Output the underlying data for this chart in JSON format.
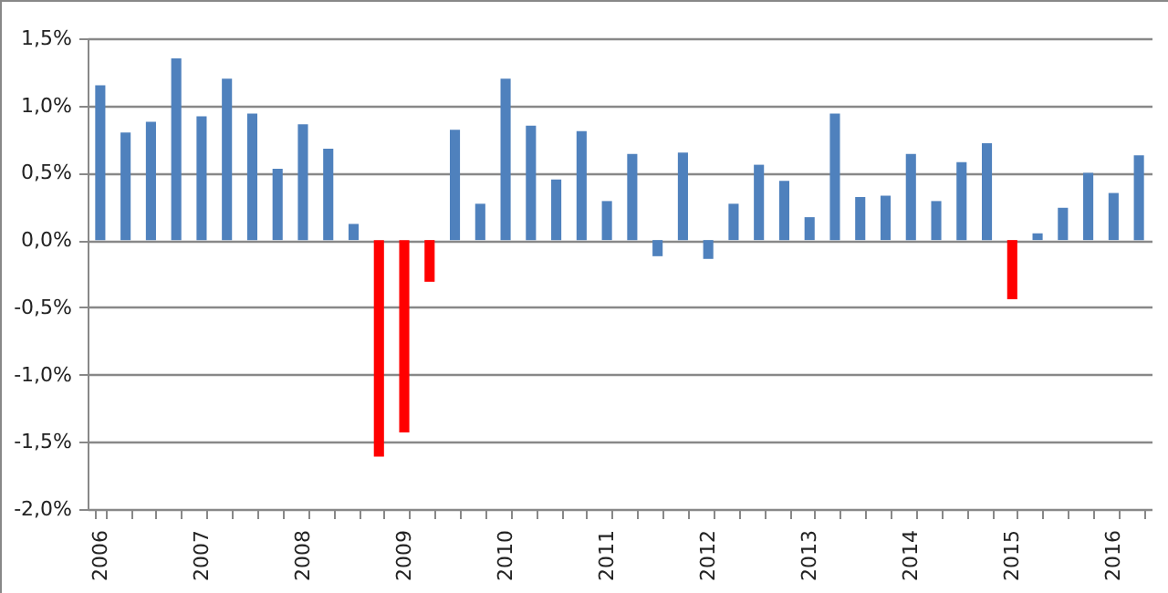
{
  "chart_data": {
    "type": "bar",
    "categories": [
      "2006",
      null,
      null,
      null,
      "2007",
      null,
      null,
      null,
      "2008",
      null,
      null,
      null,
      "2009",
      null,
      null,
      null,
      "2010",
      null,
      null,
      null,
      "2011",
      null,
      null,
      null,
      "2012",
      null,
      null,
      null,
      "2013",
      null,
      null,
      null,
      "2014",
      null,
      null,
      null,
      "2015",
      null,
      null,
      null,
      "2016",
      null
    ],
    "values": [
      1.15,
      0.8,
      0.88,
      1.35,
      0.92,
      1.2,
      0.94,
      0.53,
      0.86,
      0.68,
      0.12,
      -1.61,
      -1.43,
      -0.31,
      0.82,
      0.27,
      1.2,
      0.85,
      0.45,
      0.81,
      0.29,
      0.64,
      -0.12,
      0.65,
      -0.14,
      0.27,
      0.56,
      0.44,
      0.17,
      0.94,
      0.32,
      0.33,
      0.64,
      0.29,
      0.58,
      0.72,
      -0.44,
      0.05,
      0.24,
      0.5,
      0.35,
      0.63
    ],
    "colors": [
      "#4f81bd",
      "#4f81bd",
      "#4f81bd",
      "#4f81bd",
      "#4f81bd",
      "#4f81bd",
      "#4f81bd",
      "#4f81bd",
      "#4f81bd",
      "#4f81bd",
      "#4f81bd",
      "#ff0000",
      "#ff0000",
      "#ff0000",
      "#4f81bd",
      "#4f81bd",
      "#4f81bd",
      "#4f81bd",
      "#4f81bd",
      "#4f81bd",
      "#4f81bd",
      "#4f81bd",
      "#4f81bd",
      "#4f81bd",
      "#4f81bd",
      "#4f81bd",
      "#4f81bd",
      "#4f81bd",
      "#4f81bd",
      "#4f81bd",
      "#4f81bd",
      "#4f81bd",
      "#4f81bd",
      "#4f81bd",
      "#4f81bd",
      "#4f81bd",
      "#ff0000",
      "#4f81bd",
      "#4f81bd",
      "#4f81bd",
      "#4f81bd",
      "#4f81bd"
    ],
    "ylim": [
      -2.0,
      1.5
    ],
    "yticks": [
      {
        "value": -2.0,
        "label": "-2,0%"
      },
      {
        "value": -1.5,
        "label": "-1,5%"
      },
      {
        "value": -1.0,
        "label": "-1,0%"
      },
      {
        "value": -0.5,
        "label": "-0,5%"
      },
      {
        "value": 0,
        "label": "0,0%"
      },
      {
        "value": 0.5,
        "label": "0,5%"
      },
      {
        "value": 1.0,
        "label": "1,0%"
      },
      {
        "value": 1.5,
        "label": "1,5%"
      }
    ],
    "grid": "y",
    "legend": false
  }
}
